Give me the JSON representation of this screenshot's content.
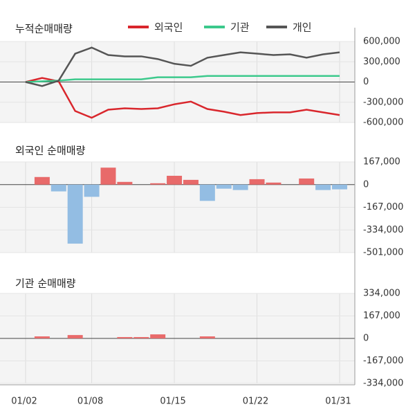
{
  "chart_data": [
    {
      "type": "line",
      "title": "누적순매매량",
      "series": [
        {
          "name": "외국인",
          "color": "#d9262c",
          "values": [
            0,
            60000,
            10000,
            -430000,
            -530000,
            -410000,
            -390000,
            -400000,
            -390000,
            -330000,
            -290000,
            -400000,
            -440000,
            -490000,
            -460000,
            -450000,
            -450000,
            -410000,
            -450000,
            -490000
          ]
        },
        {
          "name": "기관",
          "color": "#3cc98c",
          "values": [
            0,
            10000,
            20000,
            40000,
            40000,
            40000,
            40000,
            40000,
            70000,
            70000,
            70000,
            90000,
            90000,
            90000,
            90000,
            90000,
            90000,
            90000,
            90000,
            90000
          ]
        },
        {
          "name": "개인",
          "color": "#555555",
          "values": [
            0,
            -60000,
            20000,
            420000,
            510000,
            400000,
            380000,
            380000,
            340000,
            270000,
            240000,
            360000,
            400000,
            440000,
            420000,
            400000,
            410000,
            360000,
            410000,
            440000
          ]
        }
      ],
      "ylim": [
        -600000,
        600000
      ],
      "yticks": [
        {
          "value": 600000,
          "label": "600,000"
        },
        {
          "value": 300000,
          "label": "300,000"
        },
        0,
        {
          "value": -300000,
          "label": "-300,000"
        },
        {
          "value": -600000,
          "label": "-600,000"
        }
      ]
    },
    {
      "type": "bar",
      "title": "외국인 순매매량",
      "pos_color": "#e86a6a",
      "neg_color": "#93bde3",
      "values": [
        0,
        56000,
        -50000,
        -435000,
        -90000,
        125000,
        20000,
        0,
        10000,
        65000,
        35000,
        -120000,
        -30000,
        -40000,
        40000,
        15000,
        0,
        45000,
        -40000,
        -35000
      ],
      "ylim": [
        -501000,
        167000
      ],
      "yticks": [
        {
          "value": 167000,
          "label": "167,000"
        },
        0,
        {
          "value": -167000,
          "label": "-167,000"
        },
        {
          "value": -334000,
          "label": "-334,000"
        },
        {
          "value": -501000,
          "label": "-501,000"
        }
      ]
    },
    {
      "type": "bar",
      "title": "기관 순매매량",
      "pos_color": "#e86a6a",
      "neg_color": "#93bde3",
      "categories": [
        "01/02",
        null,
        null,
        null,
        "01/08",
        null,
        null,
        null,
        null,
        "01/15",
        null,
        null,
        null,
        null,
        "01/22",
        null,
        null,
        null,
        null,
        "01/31"
      ],
      "values": [
        0,
        15000,
        0,
        25000,
        0,
        0,
        10000,
        10000,
        30000,
        0,
        0,
        15000,
        0,
        0,
        0,
        0,
        0,
        0,
        0,
        0
      ],
      "ylim": [
        -334000,
        334000
      ],
      "yticks": [
        {
          "value": 334000,
          "label": "334,000"
        },
        {
          "value": 167000,
          "label": "167,000"
        },
        0,
        {
          "value": -167000,
          "label": "-167,000"
        },
        {
          "value": -334000,
          "label": "-334,000"
        }
      ]
    }
  ]
}
